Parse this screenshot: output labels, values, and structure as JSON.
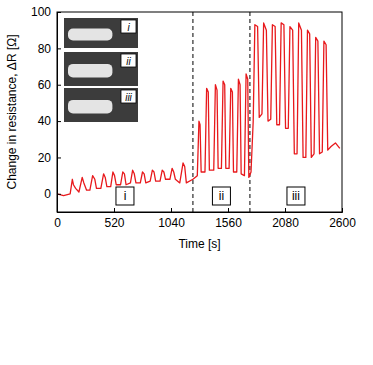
{
  "chart_data": {
    "type": "line",
    "x_label": "Time [s]",
    "y_label": "Change in resistance, ΔR [Ω]",
    "color": "#e8191c",
    "xlim": [
      0,
      2600
    ],
    "xticks": [
      0,
      520,
      1040,
      1560,
      2080,
      2600
    ],
    "ylim": [
      -10,
      100
    ],
    "yticks": [
      0,
      20,
      40,
      60,
      80,
      100
    ],
    "dividers": [
      1240,
      1760
    ],
    "region_labels": [
      "i",
      "ii",
      "iii"
    ],
    "inset_labels": [
      "i",
      "ii",
      "iii"
    ],
    "x": [
      0,
      60,
      120,
      140,
      150,
      170,
      200,
      230,
      245,
      270,
      300,
      325,
      345,
      360,
      400,
      425,
      440,
      455,
      490,
      510,
      525,
      540,
      580,
      600,
      615,
      630,
      670,
      690,
      705,
      720,
      760,
      780,
      795,
      810,
      850,
      870,
      885,
      900,
      940,
      960,
      975,
      990,
      1030,
      1050,
      1065,
      1080,
      1120,
      1150,
      1165,
      1180,
      1240,
      1280,
      1295,
      1305,
      1315,
      1350,
      1365,
      1380,
      1390,
      1430,
      1445,
      1460,
      1470,
      1500,
      1515,
      1530,
      1540,
      1570,
      1585,
      1600,
      1610,
      1640,
      1655,
      1670,
      1680,
      1710,
      1725,
      1740,
      1750,
      1770,
      1790,
      1805,
      1830,
      1845,
      1870,
      1885,
      1910,
      1925,
      1950,
      1965,
      1990,
      2005,
      2030,
      2045,
      2070,
      2085,
      2110,
      2125,
      2150,
      2165,
      2190,
      2205,
      2230,
      2245,
      2270,
      2285,
      2305,
      2320,
      2345,
      2360,
      2380,
      2395,
      2420,
      2435,
      2455,
      2470,
      2500,
      2540,
      2580
    ],
    "values": [
      0,
      -1,
      0,
      8,
      5,
      3,
      1,
      9,
      6,
      2,
      2,
      10,
      8,
      3,
      3,
      11,
      9,
      4,
      4,
      12,
      10,
      5,
      5,
      12,
      11,
      5,
      6,
      13,
      11,
      6,
      6,
      12,
      11,
      6,
      7,
      13,
      12,
      7,
      7,
      13,
      12,
      8,
      8,
      14,
      12,
      8,
      6,
      17,
      15,
      6,
      8,
      10,
      40,
      38,
      12,
      12,
      58,
      56,
      13,
      13,
      60,
      57,
      14,
      14,
      62,
      60,
      14,
      14,
      58,
      56,
      12,
      12,
      63,
      60,
      11,
      10,
      66,
      63,
      9,
      12,
      40,
      93,
      92,
      42,
      44,
      94,
      90,
      40,
      41,
      93,
      92,
      38,
      38,
      94,
      93,
      36,
      36,
      92,
      90,
      22,
      22,
      94,
      90,
      20,
      20,
      90,
      88,
      20,
      22,
      86,
      84,
      22,
      23,
      84,
      82,
      24,
      26,
      28,
      25
    ]
  }
}
